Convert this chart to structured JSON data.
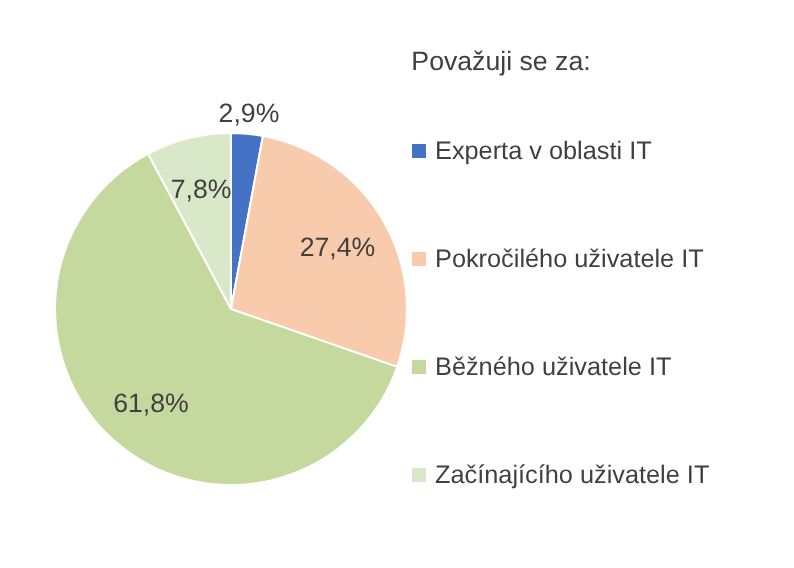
{
  "chart_data": {
    "type": "pie",
    "legend_title": "Považuji se za:",
    "categories": [
      "Experta v oblasti IT",
      "Pokročilého uživatele IT",
      "Běžného uživatele IT",
      "Začínajícího uživatele IT"
    ],
    "values": [
      2.9,
      27.4,
      61.8,
      7.8
    ],
    "colors": [
      "#4472c4",
      "#f8cbad",
      "#c5d89d",
      "#d9e8c9"
    ],
    "value_labels": [
      "2,9%",
      "27,4%",
      "61,8%",
      "7,8%"
    ],
    "legend": "right"
  }
}
